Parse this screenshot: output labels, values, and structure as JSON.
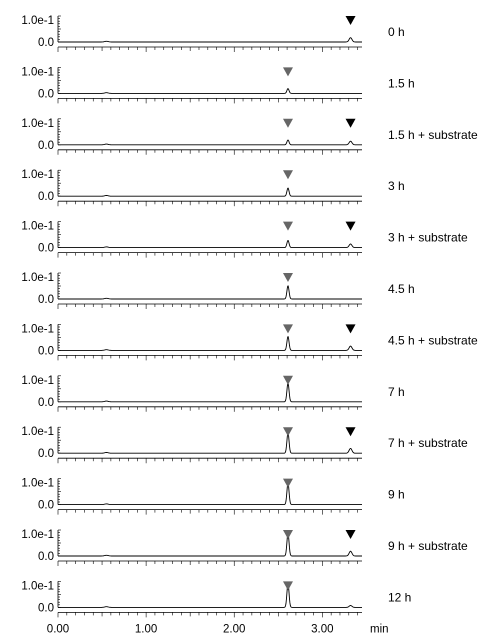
{
  "chart_data": {
    "type": "line",
    "xlabel": "min",
    "xlim": [
      0.0,
      3.45
    ],
    "x_ticks": [
      "0.00",
      "1.00",
      "2.00",
      "3.00"
    ],
    "y_ticks": [
      "1.0e-1",
      "0.0"
    ],
    "ylim": [
      0.0,
      0.1
    ],
    "colors": {
      "trace": "#000000",
      "product_marker": "#666666",
      "substrate_marker": "#000000"
    },
    "peaks": {
      "product_rt": 2.61,
      "substrate_rt": 3.32
    },
    "series": [
      {
        "name": "0 h",
        "product_height": 0.0,
        "substrate_height": 0.018,
        "product_marker": false,
        "substrate_marker": true
      },
      {
        "name": "1.5 h",
        "product_height": 0.02,
        "substrate_height": 0.0,
        "product_marker": true,
        "substrate_marker": false
      },
      {
        "name": "1.5 h + substrate",
        "product_height": 0.02,
        "substrate_height": 0.015,
        "product_marker": true,
        "substrate_marker": true
      },
      {
        "name": "3 h",
        "product_height": 0.034,
        "substrate_height": 0.0,
        "product_marker": true,
        "substrate_marker": false
      },
      {
        "name": "3 h + substrate",
        "product_height": 0.03,
        "substrate_height": 0.015,
        "product_marker": true,
        "substrate_marker": true
      },
      {
        "name": "4.5 h",
        "product_height": 0.055,
        "substrate_height": 0.0,
        "product_marker": true,
        "substrate_marker": false
      },
      {
        "name": "4.5 h + substrate",
        "product_height": 0.058,
        "substrate_height": 0.018,
        "product_marker": true,
        "substrate_marker": true
      },
      {
        "name": "7 h",
        "product_height": 0.078,
        "substrate_height": 0.0,
        "product_marker": true,
        "substrate_marker": false
      },
      {
        "name": "7 h + substrate",
        "product_height": 0.085,
        "substrate_height": 0.02,
        "product_marker": true,
        "substrate_marker": true
      },
      {
        "name": "9 h",
        "product_height": 0.09,
        "substrate_height": 0.0,
        "product_marker": true,
        "substrate_marker": false
      },
      {
        "name": "9 h + substrate",
        "product_height": 0.095,
        "substrate_height": 0.02,
        "product_marker": true,
        "substrate_marker": true
      },
      {
        "name": "12 h",
        "product_height": 0.1,
        "substrate_height": 0.008,
        "product_marker": true,
        "substrate_marker": false
      }
    ]
  }
}
